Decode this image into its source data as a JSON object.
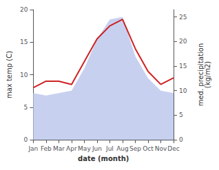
{
  "chart_data": {
    "type": "line",
    "xlabel": "date (month)",
    "ylabel": "max temp (C)",
    "y2label": "med. precipitation\n(kg/m2)",
    "categories": [
      "Jan",
      "Feb",
      "Mar",
      "Apr",
      "May",
      "Jun",
      "Jul",
      "Aug",
      "Sep",
      "Oct",
      "Nov",
      "Dec"
    ],
    "series": [
      {
        "type": "area",
        "axis": "y2",
        "color": "#c8d0f0",
        "values": [
          9.5,
          9.0,
          9.5,
          10.0,
          14.5,
          20.5,
          24.5,
          25.0,
          17.0,
          12.5,
          10.0,
          9.5
        ]
      },
      {
        "type": "line",
        "axis": "y",
        "color": "#cc2222",
        "values": [
          8.0,
          9.0,
          9.0,
          8.5,
          12.0,
          15.5,
          17.5,
          18.5,
          14.0,
          10.5,
          8.5,
          9.5
        ]
      }
    ],
    "ylim": [
      0,
      20
    ],
    "yticks": [
      0,
      5,
      10,
      15,
      20
    ],
    "y2lim": [
      0,
      26.5
    ],
    "y2ticks": [
      0,
      5,
      10,
      15,
      20,
      25
    ],
    "grid": false
  }
}
